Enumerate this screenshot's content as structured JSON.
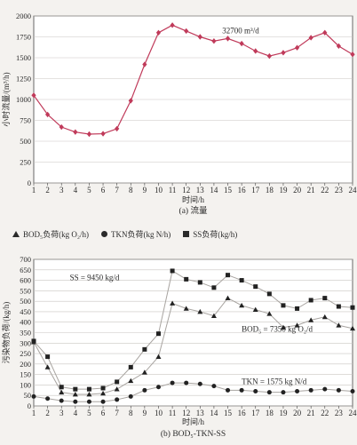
{
  "chart_data": [
    {
      "type": "line",
      "annotation": "32700 m³/d",
      "xlabel": "时间/h",
      "ylabel": "小时流量/(m³/h)",
      "caption": "(a) 流量",
      "xlim": [
        1,
        24
      ],
      "ylim": [
        0,
        2000
      ],
      "x_ticks": [
        "1",
        "2",
        "3",
        "4",
        "5",
        "6",
        "7",
        "8",
        "9",
        "10",
        "11",
        "12",
        "13",
        "14",
        "15",
        "16",
        "17",
        "18",
        "19",
        "20",
        "21",
        "22",
        "23",
        "24"
      ],
      "y_ticks": [
        "0",
        "250",
        "500",
        "750",
        "1000",
        "1250",
        "1500",
        "1750",
        "2000"
      ],
      "grid": true,
      "series": [
        {
          "x": [
            1,
            2,
            3,
            4,
            5,
            6,
            7,
            8,
            9,
            10,
            11,
            12,
            13,
            14,
            15,
            16,
            17,
            18,
            19,
            20,
            21,
            22,
            23,
            24
          ],
          "y": [
            1050,
            820,
            670,
            610,
            585,
            590,
            650,
            985,
            1420,
            1800,
            1890,
            1820,
            1750,
            1700,
            1730,
            1670,
            1580,
            1520,
            1560,
            1620,
            1740,
            1800,
            1640,
            1540
          ],
          "color": "#c03a5a",
          "marker": "diamond"
        }
      ]
    },
    {
      "type": "line",
      "legend": [
        {
          "label": "BOD₅负荷(kg O₂/h)",
          "marker": "triangle"
        },
        {
          "label": "TKN负荷(kg N/h)",
          "marker": "circle"
        },
        {
          "label": "SS负荷(kg/h)",
          "marker": "square"
        }
      ],
      "xlabel": "时间/h",
      "ylabel": "污染物负荷/(kg/h)",
      "caption": "(b) BOD₅-TKN-SS",
      "xlim": [
        1,
        24
      ],
      "ylim": [
        0,
        700
      ],
      "x_ticks": [
        "1",
        "2",
        "3",
        "4",
        "5",
        "6",
        "7",
        "8",
        "9",
        "10",
        "11",
        "12",
        "13",
        "14",
        "15",
        "16",
        "17",
        "18",
        "19",
        "20",
        "21",
        "22",
        "23",
        "24"
      ],
      "y_ticks": [
        "0",
        "50",
        "100",
        "150",
        "200",
        "250",
        "300",
        "350",
        "400",
        "450",
        "500",
        "550",
        "600",
        "650",
        "700"
      ],
      "grid": true,
      "annotations": [
        "SS = 9450 kg/d",
        "BOD₅ = 7350 kg O₂/d",
        "TKN = 1575 kg N/d"
      ],
      "series": [
        {
          "name": "BOD₅负荷(kg O₂/h)",
          "marker": "triangle",
          "x": [
            1,
            2,
            3,
            4,
            5,
            6,
            7,
            8,
            9,
            10,
            11,
            12,
            13,
            14,
            15,
            16,
            17,
            18,
            19,
            20,
            21,
            22,
            23,
            24
          ],
          "y": [
            305,
            185,
            65,
            55,
            55,
            60,
            80,
            120,
            160,
            235,
            490,
            465,
            450,
            430,
            515,
            480,
            460,
            440,
            375,
            385,
            410,
            425,
            385,
            370
          ]
        },
        {
          "name": "TKN负荷(kg N/h)",
          "marker": "circle",
          "x": [
            1,
            2,
            3,
            4,
            5,
            6,
            7,
            8,
            9,
            10,
            11,
            12,
            13,
            14,
            15,
            16,
            17,
            18,
            19,
            20,
            21,
            22,
            23,
            24
          ],
          "y": [
            45,
            35,
            25,
            20,
            20,
            20,
            30,
            45,
            75,
            90,
            110,
            110,
            105,
            95,
            75,
            75,
            70,
            65,
            65,
            70,
            75,
            80,
            75,
            70
          ]
        },
        {
          "name": "SS负荷(kg/h)",
          "marker": "square",
          "x": [
            1,
            2,
            3,
            4,
            5,
            6,
            7,
            8,
            9,
            10,
            11,
            12,
            13,
            14,
            15,
            16,
            17,
            18,
            19,
            20,
            21,
            22,
            23,
            24
          ],
          "y": [
            310,
            235,
            90,
            80,
            80,
            85,
            115,
            185,
            270,
            345,
            645,
            605,
            590,
            565,
            625,
            600,
            570,
            535,
            480,
            465,
            505,
            515,
            475,
            470
          ]
        }
      ]
    }
  ]
}
